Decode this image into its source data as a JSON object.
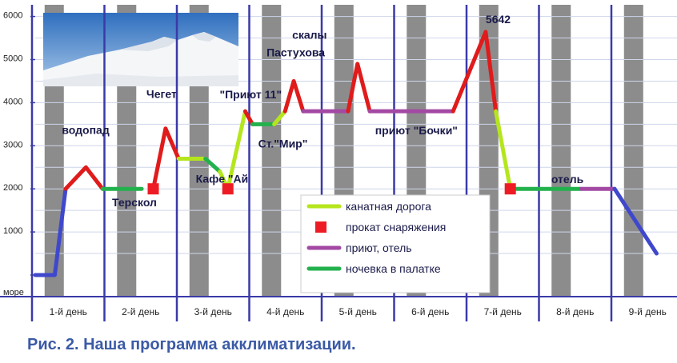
{
  "chart_data": {
    "type": "line",
    "y_ticks": [
      "море",
      "1000",
      "2000",
      "3000",
      "4000",
      "5000",
      "6000"
    ],
    "x_categories": [
      "1-й день",
      "2-й день",
      "3-й день",
      "4-й день",
      "5-й день",
      "6-й день",
      "7-й день",
      "8-й день",
      "9-й день"
    ],
    "ylim": [
      0,
      6300
    ],
    "route_points": [
      {
        "day": 0.0,
        "alt": 0
      },
      {
        "day": 0.27,
        "alt": 0
      },
      {
        "day": 0.42,
        "alt": 2000
      },
      {
        "day": 0.7,
        "alt": 2500
      },
      {
        "day": 0.93,
        "alt": 2000
      },
      {
        "day": 1.47,
        "alt": 2000
      },
      {
        "day": 1.63,
        "alt": 2000
      },
      {
        "day": 1.8,
        "alt": 3400
      },
      {
        "day": 1.98,
        "alt": 2700
      },
      {
        "day": 2.35,
        "alt": 2700
      },
      {
        "day": 2.55,
        "alt": 2400
      },
      {
        "day": 2.66,
        "alt": 2000
      },
      {
        "day": 2.9,
        "alt": 3800
      },
      {
        "day": 3.0,
        "alt": 3500
      },
      {
        "day": 3.3,
        "alt": 3500
      },
      {
        "day": 3.45,
        "alt": 3800
      },
      {
        "day": 3.57,
        "alt": 4500
      },
      {
        "day": 3.7,
        "alt": 3800
      },
      {
        "day": 4.32,
        "alt": 3800
      },
      {
        "day": 4.45,
        "alt": 4900
      },
      {
        "day": 4.62,
        "alt": 3800
      },
      {
        "day": 5.77,
        "alt": 3800
      },
      {
        "day": 6.22,
        "alt": 5642
      },
      {
        "day": 6.36,
        "alt": 3800
      },
      {
        "day": 6.56,
        "alt": 2000
      },
      {
        "day": 7.54,
        "alt": 2000
      },
      {
        "day": 8.0,
        "alt": 2000
      },
      {
        "day": 8.58,
        "alt": 500
      }
    ],
    "segments": [
      {
        "from": 0,
        "to": 2,
        "kind": "walk"
      },
      {
        "from": 2,
        "to": 4,
        "kind": "peak"
      },
      {
        "from": 4,
        "to": 5,
        "kind": "tent"
      },
      {
        "from": 6,
        "to": 8,
        "kind": "peak"
      },
      {
        "from": 8,
        "to": 9,
        "kind": "lift"
      },
      {
        "from": 9,
        "to": 10,
        "kind": "tent"
      },
      {
        "from": 10,
        "to": 11,
        "kind": "lift"
      },
      {
        "from": 11,
        "to": 12,
        "kind": "lift"
      },
      {
        "from": 12,
        "to": 13,
        "kind": "peak"
      },
      {
        "from": 13,
        "to": 14,
        "kind": "tent"
      },
      {
        "from": 14,
        "to": 15,
        "kind": "lift"
      },
      {
        "from": 15,
        "to": 17,
        "kind": "peak"
      },
      {
        "from": 17,
        "to": 18,
        "kind": "hut"
      },
      {
        "from": 18,
        "to": 20,
        "kind": "peak"
      },
      {
        "from": 20,
        "to": 21,
        "kind": "hut"
      },
      {
        "from": 21,
        "to": 23,
        "kind": "peak"
      },
      {
        "from": 23,
        "to": 24,
        "kind": "lift"
      },
      {
        "from": 24,
        "to": 25,
        "kind": "tent"
      },
      {
        "from": 25,
        "to": 26,
        "kind": "hut"
      },
      {
        "from": 26,
        "to": 27,
        "kind": "walk"
      }
    ],
    "rental_markers": [
      {
        "day": 1.63,
        "alt": 2000
      },
      {
        "day": 2.66,
        "alt": 2000
      },
      {
        "day": 6.56,
        "alt": 2000
      }
    ],
    "annotations": [
      {
        "text": "водопад",
        "day": 0.7,
        "alt": 2500
      },
      {
        "text": "Терскол",
        "day": 1.47,
        "alt": 2000
      },
      {
        "text": "Чегет",
        "day": 1.8,
        "alt": 3400
      },
      {
        "text": "Кафе \"Ай",
        "day": 2.35,
        "alt": 2700
      },
      {
        "text": "\"Приют 11\"",
        "day": 2.9,
        "alt": 3800
      },
      {
        "text": "Ст.\"Мир\"",
        "day": 3.3,
        "alt": 3500
      },
      {
        "text": "скалы",
        "day": 3.57,
        "alt": 4500
      },
      {
        "text": "Пастухова",
        "day": 3.57,
        "alt": 4500
      },
      {
        "text": "приют \"Бочки\"",
        "day": 5.4,
        "alt": 3800
      },
      {
        "text": "5642",
        "day": 6.22,
        "alt": 5642
      },
      {
        "text": "отель",
        "day": 7.7,
        "alt": 2000
      }
    ],
    "legend": [
      {
        "kind": "lift",
        "label": "канатная дорога"
      },
      {
        "kind": "rental",
        "label": "прокат снаряжения"
      },
      {
        "kind": "hut",
        "label": "приют, отель"
      },
      {
        "kind": "tent",
        "label": "ночевка в палатке"
      }
    ],
    "legend_position": "center-right"
  },
  "colors": {
    "walk": "#3f48cc",
    "peak": "#e01b1b",
    "lift": "#b5e61d",
    "hut": "#a349a4",
    "tent": "#22b14c",
    "rental": "#ed1c24",
    "day_band": "#8c8c8c",
    "grid": "#cfd6ea",
    "axis": "#3a3aa8",
    "caption": "#3b5aa6"
  },
  "caption": "Рис. 2. Наша программа акклиматизации."
}
